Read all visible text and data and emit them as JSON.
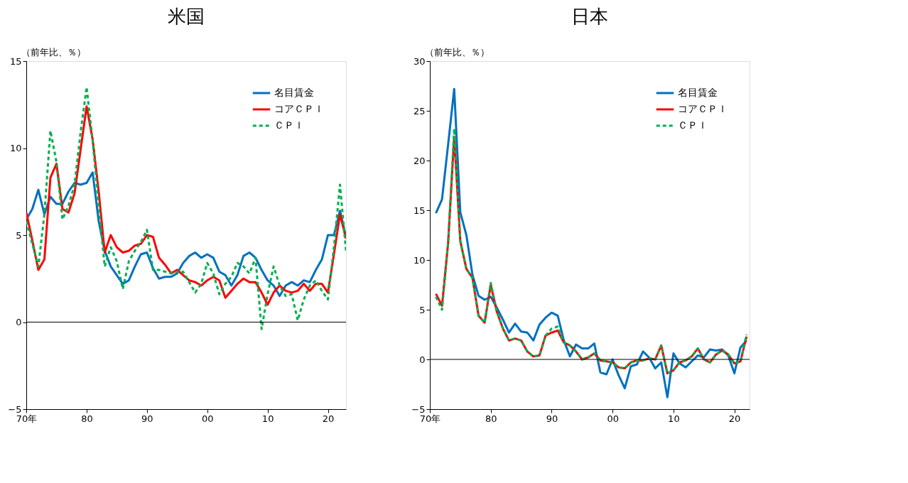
{
  "chart_data": [
    {
      "type": "line",
      "title": "米国",
      "ylabel": "（前年比、％）",
      "legend": "top right",
      "grid": false,
      "marker": "none",
      "x": [
        "1970",
        "1971",
        "1972",
        "1973",
        "1974",
        "1975",
        "1976",
        "1977",
        "1978",
        "1979",
        "1980",
        "1981",
        "1982",
        "1983",
        "1984",
        "1985",
        "1986",
        "1987",
        "1988",
        "1989",
        "1990",
        "1991",
        "1992",
        "1993",
        "1994",
        "1995",
        "1996",
        "1997",
        "1998",
        "1999",
        "2000",
        "2001",
        "2002",
        "2003",
        "2004",
        "2005",
        "2006",
        "2007",
        "2008",
        "2009",
        "2010",
        "2011",
        "2012",
        "2013",
        "2014",
        "2015",
        "2016",
        "2017",
        "2018",
        "2019",
        "2020",
        "2021",
        "2022",
        "2023"
      ],
      "xlim": [
        "1970",
        "2023"
      ],
      "xticks": [
        {
          "value": "1970",
          "label": "70年"
        },
        {
          "value": "1980",
          "label": "80"
        },
        {
          "value": "1990",
          "label": "90"
        },
        {
          "value": "2000",
          "label": "00"
        },
        {
          "value": "2010",
          "label": "10"
        },
        {
          "value": "2020",
          "label": "20"
        }
      ],
      "ylim": [
        -5,
        15
      ],
      "yticks": [
        -5,
        0,
        5,
        10,
        15
      ],
      "ref_lines": [
        {
          "axis": "y",
          "value": 0,
          "color": "#000000"
        }
      ],
      "series": [
        {
          "name": "名目賃金",
          "color": "#0070c0",
          "line_style": "solid",
          "values": [
            5.9,
            6.5,
            7.6,
            6.2,
            7.2,
            6.8,
            6.8,
            7.5,
            8.0,
            7.9,
            8.0,
            8.6,
            5.8,
            4.1,
            3.2,
            2.7,
            2.2,
            2.4,
            3.2,
            3.9,
            4.0,
            3.1,
            2.5,
            2.6,
            2.6,
            2.8,
            3.4,
            3.8,
            4.0,
            3.7,
            3.9,
            3.7,
            2.9,
            2.7,
            2.1,
            2.7,
            3.8,
            4.0,
            3.7,
            3.0,
            2.4,
            2.1,
            1.5,
            2.1,
            2.3,
            2.1,
            2.4,
            2.3,
            3.0,
            3.6,
            5.0,
            5.0,
            6.4,
            4.9
          ]
        },
        {
          "name": "コアＣＰＩ",
          "color": "#ff0000",
          "line_style": "solid",
          "values": [
            6.3,
            4.7,
            3.0,
            3.6,
            8.3,
            9.1,
            6.5,
            6.3,
            7.4,
            9.9,
            12.4,
            10.5,
            7.5,
            4.0,
            5.0,
            4.3,
            4.0,
            4.1,
            4.4,
            4.5,
            5.0,
            4.9,
            3.7,
            3.3,
            2.8,
            3.0,
            2.7,
            2.4,
            2.3,
            2.1,
            2.4,
            2.6,
            2.4,
            1.4,
            1.8,
            2.2,
            2.5,
            2.3,
            2.3,
            1.7,
            1.0,
            1.7,
            2.1,
            1.8,
            1.7,
            1.8,
            2.2,
            1.8,
            2.2,
            2.2,
            1.7,
            3.9,
            6.2,
            4.8
          ]
        },
        {
          "name": "ＣＰＩ",
          "color": "#00b050",
          "line_style": "dashed",
          "values": [
            5.8,
            4.5,
            3.2,
            6.2,
            11.0,
            9.2,
            5.9,
            6.7,
            7.9,
            10.9,
            13.5,
            10.4,
            6.7,
            3.2,
            4.3,
            3.5,
            1.9,
            3.5,
            4.1,
            4.6,
            5.3,
            3.0,
            3.0,
            2.9,
            2.8,
            2.9,
            2.9,
            2.3,
            1.7,
            2.2,
            3.4,
            2.8,
            1.6,
            2.2,
            2.6,
            3.4,
            3.2,
            2.8,
            3.7,
            -0.4,
            1.6,
            3.2,
            2.1,
            1.5,
            1.6,
            0.1,
            1.3,
            2.1,
            2.4,
            1.8,
            1.3,
            4.3,
            7.9,
            4.1
          ]
        }
      ]
    },
    {
      "type": "line",
      "title": "日本",
      "ylabel": "（前年比、％）",
      "legend": "top right",
      "grid": false,
      "marker": "none",
      "x": [
        "1971",
        "1972",
        "1973",
        "1974",
        "1975",
        "1976",
        "1977",
        "1978",
        "1979",
        "1980",
        "1981",
        "1982",
        "1983",
        "1984",
        "1985",
        "1986",
        "1987",
        "1988",
        "1989",
        "1990",
        "1991",
        "1992",
        "1993",
        "1994",
        "1995",
        "1996",
        "1997",
        "1998",
        "1999",
        "2000",
        "2001",
        "2002",
        "2003",
        "2004",
        "2005",
        "2006",
        "2007",
        "2008",
        "2009",
        "2010",
        "2011",
        "2012",
        "2013",
        "2014",
        "2015",
        "2016",
        "2017",
        "2018",
        "2019",
        "2020",
        "2021",
        "2022"
      ],
      "xlim": [
        "1970",
        "2022-07"
      ],
      "xticks": [
        {
          "value": "1970",
          "label": "70年"
        },
        {
          "value": "1980",
          "label": "80"
        },
        {
          "value": "1990",
          "label": "90"
        },
        {
          "value": "2000",
          "label": "00"
        },
        {
          "value": "2010",
          "label": "10"
        },
        {
          "value": "2020",
          "label": "20"
        }
      ],
      "ylim": [
        -5,
        30
      ],
      "yticks": [
        -5,
        0,
        5,
        10,
        15,
        20,
        25,
        30
      ],
      "ref_lines": [
        {
          "axis": "y",
          "value": 0,
          "color": "#000000"
        }
      ],
      "series": [
        {
          "name": "名目賃金",
          "color": "#0070c0",
          "line_style": "solid",
          "values": [
            14.7,
            16.1,
            21.6,
            27.2,
            14.8,
            12.5,
            8.5,
            6.4,
            6.0,
            6.3,
            5.2,
            4.0,
            2.7,
            3.6,
            2.8,
            2.7,
            1.9,
            3.5,
            4.2,
            4.7,
            4.4,
            1.9,
            0.3,
            1.5,
            1.1,
            1.1,
            1.6,
            -1.3,
            -1.5,
            0.0,
            -1.6,
            -2.9,
            -0.7,
            -0.5,
            0.8,
            0.2,
            -0.9,
            -0.3,
            -3.8,
            0.6,
            -0.4,
            -0.8,
            -0.2,
            0.4,
            0.2,
            1.0,
            0.9,
            1.0,
            0.4,
            -1.4,
            1.2,
            1.9
          ]
        },
        {
          "name": "コアＣＰＩ",
          "color": "#ff0000",
          "line_style": "solid",
          "values": [
            6.6,
            5.4,
            11.7,
            22.4,
            11.9,
            9.1,
            8.2,
            4.4,
            3.7,
            7.5,
            4.8,
            3.1,
            1.9,
            2.1,
            1.9,
            0.8,
            0.3,
            0.4,
            2.4,
            2.7,
            2.9,
            1.7,
            1.4,
            0.8,
            0.0,
            0.2,
            0.6,
            -0.1,
            -0.2,
            -0.3,
            -0.8,
            -0.9,
            -0.3,
            -0.1,
            -0.1,
            0.1,
            0.0,
            1.4,
            -1.4,
            -1.1,
            -0.3,
            -0.1,
            0.3,
            1.1,
            0.0,
            -0.3,
            0.5,
            0.9,
            0.5,
            -0.4,
            -0.2,
            2.3
          ]
        },
        {
          "name": "ＣＰＩ",
          "color": "#00b050",
          "line_style": "dashed",
          "values": [
            6.3,
            5.0,
            11.7,
            23.2,
            11.9,
            9.1,
            8.2,
            4.4,
            3.7,
            7.7,
            4.8,
            3.1,
            1.9,
            2.1,
            1.9,
            0.8,
            0.3,
            0.4,
            2.4,
            3.1,
            3.3,
            1.7,
            1.4,
            0.8,
            0.0,
            0.2,
            0.6,
            -0.1,
            -0.2,
            -0.3,
            -0.8,
            -0.9,
            -0.3,
            -0.1,
            -0.1,
            0.1,
            0.0,
            1.4,
            -1.4,
            -1.1,
            -0.3,
            -0.1,
            0.3,
            1.1,
            0.0,
            -0.3,
            0.5,
            0.9,
            0.5,
            -0.4,
            -0.2,
            2.5
          ]
        }
      ]
    }
  ]
}
